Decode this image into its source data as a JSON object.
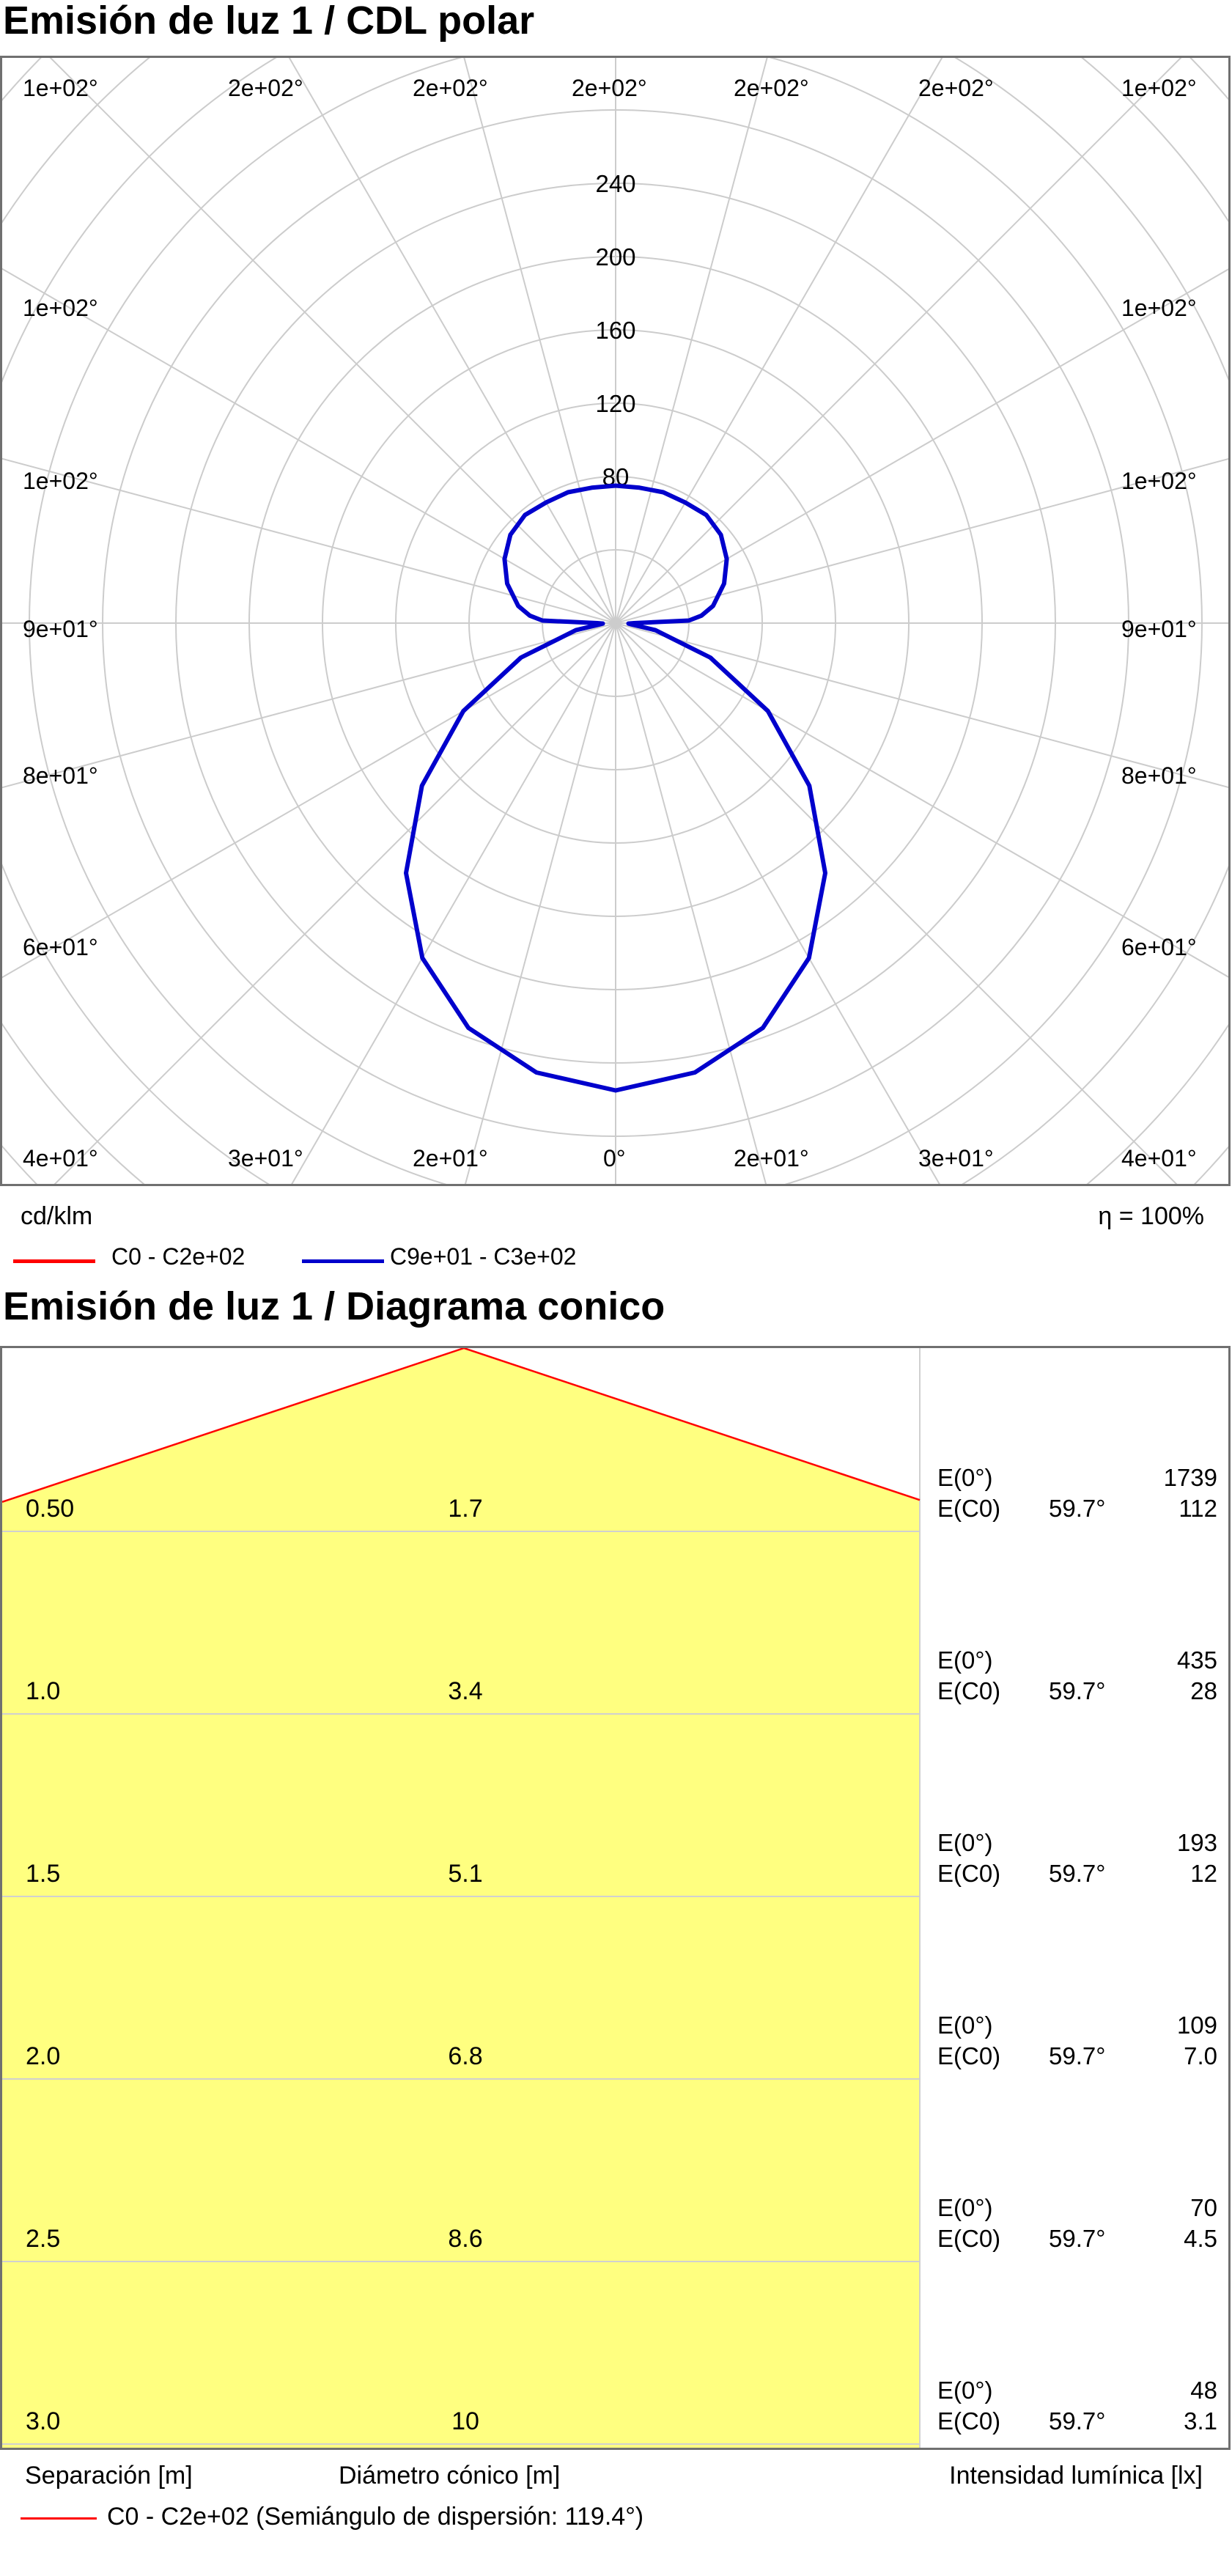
{
  "polar": {
    "title": "Emisión de luz 1 / CDL polar",
    "unit_label": "cd/klm",
    "efficiency": "η = 100%",
    "legend": [
      {
        "label": "C0 - C2e+02",
        "color": "#ff0000"
      },
      {
        "label": "C9e+01 - C3e+02",
        "color": "#0000cc"
      }
    ]
  },
  "cone": {
    "title": "Emisión de luz 1 / Diagrama conico",
    "footer_sep": "Separación [m]",
    "footer_diam": "Diámetro cónico [m]",
    "footer_int": "Intensidad lumínica [lx]",
    "legend": "C0 - C2e+02 (Semiángulo de dispersión: 119.4°)",
    "legend_color": "#ff0000",
    "fill_color": "#ffff80"
  },
  "chart_data": [
    {
      "type": "polar",
      "title": "Emisión de luz 1 / CDL polar",
      "unit": "cd/klm",
      "radial_ticks": [
        80,
        120,
        160,
        200,
        240
      ],
      "angle_labels_top": [
        "1e+02°",
        "2e+02°",
        "2e+02°",
        "2e+02°",
        "2e+02°",
        "2e+02°",
        "1e+02°"
      ],
      "angle_labels_side": [
        "1e+02°",
        "1e+02°",
        "9e+01°",
        "8e+01°",
        "6e+01°"
      ],
      "angle_labels_bottom": [
        "4e+01°",
        "3e+01°",
        "2e+01°",
        "0°",
        "2e+01°",
        "3e+01°",
        "4e+01°"
      ],
      "series": [
        {
          "name": "C9e+01 - C3e+02",
          "color": "#0000cc",
          "angle_deg": [
            0,
            10,
            20,
            30,
            40,
            50,
            60,
            70,
            80,
            85,
            88,
            90,
            92,
            95,
            100,
            110,
            120,
            130,
            140,
            150,
            160,
            170,
            180
          ],
          "cd_klm": [
            255,
            249,
            235,
            211,
            178,
            138,
            96,
            55,
            22,
            9,
            7,
            10,
            40,
            47,
            54,
            63,
            70,
            75,
            77,
            76,
            76,
            75,
            75
          ]
        }
      ],
      "efficiency": "η = 100%"
    },
    {
      "type": "table",
      "title": "Emisión de luz 1 / Diagrama conico",
      "half_angle_deg": 59.7,
      "spread_half_angle_deg": 119.4,
      "columns": [
        "Separación [m]",
        "Diámetro cónico [m]",
        "Intensidad lumínica [lx]"
      ],
      "rows": [
        {
          "sep": "0.50",
          "diam": "1.7",
          "e0": "1739",
          "ec0": "112"
        },
        {
          "sep": "1.0",
          "diam": "3.4",
          "e0": "435",
          "ec0": "28"
        },
        {
          "sep": "1.5",
          "diam": "5.1",
          "e0": "193",
          "ec0": "12"
        },
        {
          "sep": "2.0",
          "diam": "6.8",
          "e0": "109",
          "ec0": "7.0"
        },
        {
          "sep": "2.5",
          "diam": "8.6",
          "e0": "70",
          "ec0": "4.5"
        },
        {
          "sep": "3.0",
          "diam": "10",
          "e0": "48",
          "ec0": "3.1"
        }
      ],
      "e0_label": "E(0°)",
      "ec0_label": "E(C0)",
      "angle_label": "59.7°"
    }
  ]
}
